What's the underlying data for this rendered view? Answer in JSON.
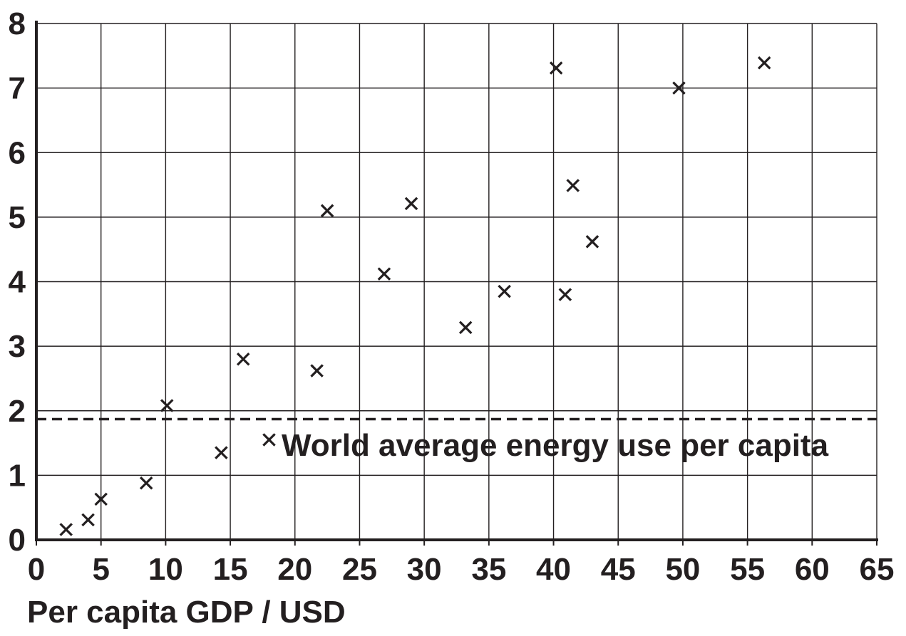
{
  "chart_data": {
    "type": "scatter",
    "title": "",
    "xlabel": "Per capita GDP / USD",
    "ylabel": "",
    "xlim": [
      0,
      65
    ],
    "ylim": [
      0,
      8
    ],
    "x_ticks": [
      0,
      5,
      10,
      15,
      20,
      25,
      30,
      35,
      40,
      45,
      50,
      55,
      60,
      65
    ],
    "y_ticks": [
      0,
      1,
      2,
      3,
      4,
      5,
      6,
      7,
      8
    ],
    "grid": true,
    "marker": "x",
    "colors": {
      "ink": "#231f20",
      "background": "#ffffff"
    },
    "series": [
      {
        "points": [
          {
            "x": 2.3,
            "y": 0.16
          },
          {
            "x": 4.0,
            "y": 0.31
          },
          {
            "x": 5.0,
            "y": 0.63
          },
          {
            "x": 8.5,
            "y": 0.88
          },
          {
            "x": 10.1,
            "y": 2.08
          },
          {
            "x": 14.3,
            "y": 1.35
          },
          {
            "x": 16.0,
            "y": 2.8
          },
          {
            "x": 18.0,
            "y": 1.55
          },
          {
            "x": 21.7,
            "y": 2.62
          },
          {
            "x": 22.5,
            "y": 5.1
          },
          {
            "x": 26.9,
            "y": 4.12
          },
          {
            "x": 29.0,
            "y": 5.21
          },
          {
            "x": 33.2,
            "y": 3.29
          },
          {
            "x": 36.2,
            "y": 3.85
          },
          {
            "x": 40.2,
            "y": 7.31
          },
          {
            "x": 40.9,
            "y": 3.8
          },
          {
            "x": 41.5,
            "y": 5.49
          },
          {
            "x": 43.0,
            "y": 4.62
          },
          {
            "x": 49.7,
            "y": 7.0
          },
          {
            "x": 56.3,
            "y": 7.39
          }
        ]
      }
    ],
    "reference_line": {
      "y": 1.87,
      "style": "dashed",
      "label": "World average energy use per capita"
    }
  }
}
